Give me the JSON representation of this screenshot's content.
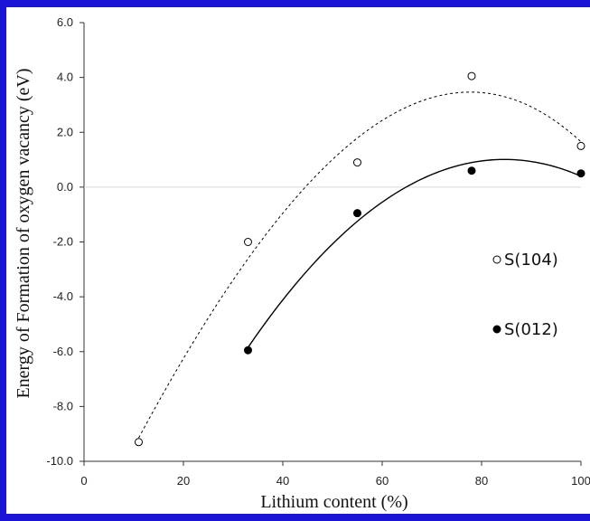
{
  "chart_data": {
    "type": "scatter",
    "title": "",
    "xlabel": "Lithium content (%)",
    "ylabel": "Energy of Formation of oxygen vacancy (eV)",
    "xlim": [
      0,
      100
    ],
    "ylim": [
      -10.0,
      6.0
    ],
    "x_ticks": [
      "0",
      "20",
      "40",
      "60",
      "80",
      "100"
    ],
    "y_ticks": [
      "-10.0",
      "-8.0",
      "-6.0",
      "-4.0",
      "-2.0",
      "0.0",
      "2.0",
      "4.0",
      "6.0"
    ],
    "grid": false,
    "zero_line": true,
    "legend_position": "right",
    "series": [
      {
        "name": "S(104)",
        "marker": "open-circle",
        "trendline": "dashed",
        "color": "#000000",
        "points": [
          [
            11,
            -9.3
          ],
          [
            33,
            -2.0
          ],
          [
            55,
            0.9
          ],
          [
            78,
            4.05
          ],
          [
            100,
            1.5
          ]
        ]
      },
      {
        "name": "S(012)",
        "marker": "filled-circle",
        "trendline": "solid",
        "color": "#000000",
        "points": [
          [
            33,
            -5.95
          ],
          [
            55,
            -0.95
          ],
          [
            78,
            0.6
          ],
          [
            100,
            0.5
          ]
        ]
      }
    ]
  }
}
